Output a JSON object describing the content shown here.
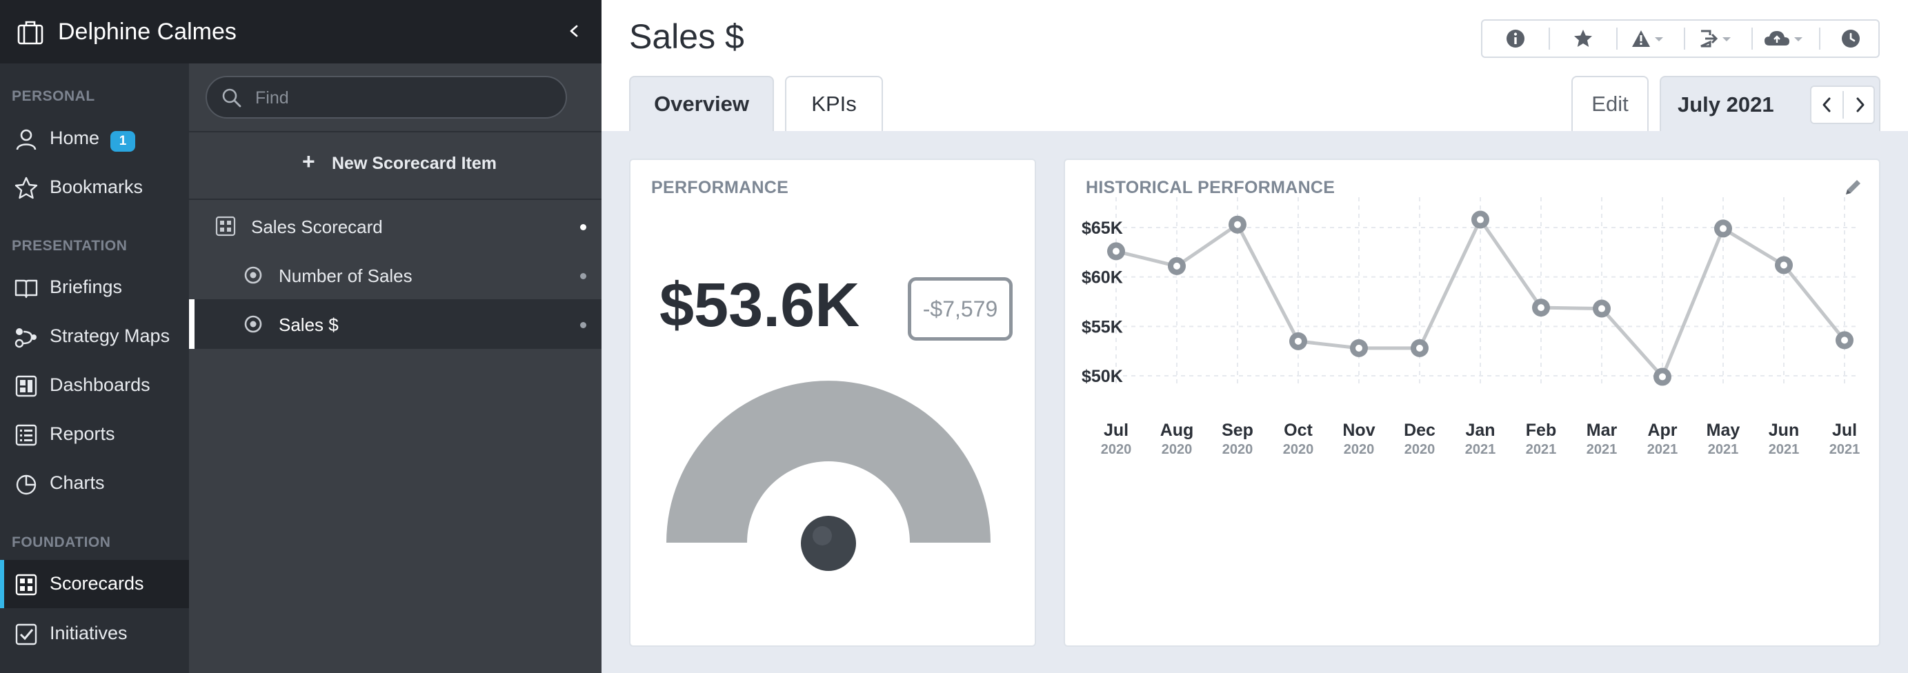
{
  "user": {
    "name": "Delphine Calmes"
  },
  "nav": {
    "sections": [
      {
        "label": "PERSONAL"
      },
      {
        "label": "PRESENTATION"
      },
      {
        "label": "FOUNDATION"
      }
    ],
    "items": [
      {
        "label": "Home",
        "icon": "person-icon",
        "badge": "1"
      },
      {
        "label": "Bookmarks",
        "icon": "star-icon"
      },
      {
        "label": "Briefings",
        "icon": "book-icon"
      },
      {
        "label": "Strategy Maps",
        "icon": "strategy-map-icon"
      },
      {
        "label": "Dashboards",
        "icon": "dashboard-icon"
      },
      {
        "label": "Reports",
        "icon": "report-icon"
      },
      {
        "label": "Charts",
        "icon": "pie-chart-icon"
      },
      {
        "label": "Scorecards",
        "icon": "scorecard-icon",
        "active": true
      },
      {
        "label": "Initiatives",
        "icon": "checkbox-icon"
      }
    ]
  },
  "tree": {
    "search_placeholder": "Find",
    "new_item_label": "New Scorecard Item",
    "rows": [
      {
        "label": "Sales Scorecard",
        "icon": "scorecard-icon"
      },
      {
        "label": "Number of Sales",
        "icon": "kpi-icon"
      },
      {
        "label": "Sales $",
        "icon": "kpi-icon",
        "selected": true
      }
    ]
  },
  "header": {
    "title": "Sales $",
    "tabs": [
      {
        "label": "Overview",
        "active": true
      },
      {
        "label": "KPIs"
      }
    ],
    "edit_label": "Edit",
    "date_label": "July 2021",
    "toolbar_icons": [
      "info-icon",
      "star-icon",
      "alert-icon",
      "export-icon",
      "cloud-upload-icon",
      "history-icon"
    ]
  },
  "performance": {
    "title": "PERFORMANCE",
    "value": "$53.6K",
    "variance": "-$7,579"
  },
  "historical": {
    "title": "HISTORICAL PERFORMANCE"
  },
  "chart_data": {
    "type": "line",
    "title": "HISTORICAL PERFORMANCE",
    "categories": [
      {
        "month": "Jul",
        "year": "2020"
      },
      {
        "month": "Aug",
        "year": "2020"
      },
      {
        "month": "Sep",
        "year": "2020"
      },
      {
        "month": "Oct",
        "year": "2020"
      },
      {
        "month": "Nov",
        "year": "2020"
      },
      {
        "month": "Dec",
        "year": "2020"
      },
      {
        "month": "Jan",
        "year": "2021"
      },
      {
        "month": "Feb",
        "year": "2021"
      },
      {
        "month": "Mar",
        "year": "2021"
      },
      {
        "month": "Apr",
        "year": "2021"
      },
      {
        "month": "May",
        "year": "2021"
      },
      {
        "month": "Jun",
        "year": "2021"
      },
      {
        "month": "Jul",
        "year": "2021"
      }
    ],
    "values": [
      62600,
      61100,
      65300,
      53500,
      52800,
      52800,
      65800,
      56900,
      56800,
      49900,
      64900,
      61200,
      53600
    ],
    "yticks": [
      {
        "value": 50000,
        "label": "$50K"
      },
      {
        "value": 55000,
        "label": "$55K"
      },
      {
        "value": 60000,
        "label": "$60K"
      },
      {
        "value": 65000,
        "label": "$65K"
      }
    ],
    "ylim": [
      48200,
      67500
    ],
    "grid": true,
    "line_color": "#c3c6c9",
    "point_color": "#8d949c"
  },
  "colors": {
    "accent": "#35b7e8",
    "badge": "#2aa6e0",
    "gauge_arc": "#a9adb0",
    "gauge_needle": "#3f454c",
    "nav_bg": "#2b2f35",
    "tree_bg": "#3b3f45"
  }
}
